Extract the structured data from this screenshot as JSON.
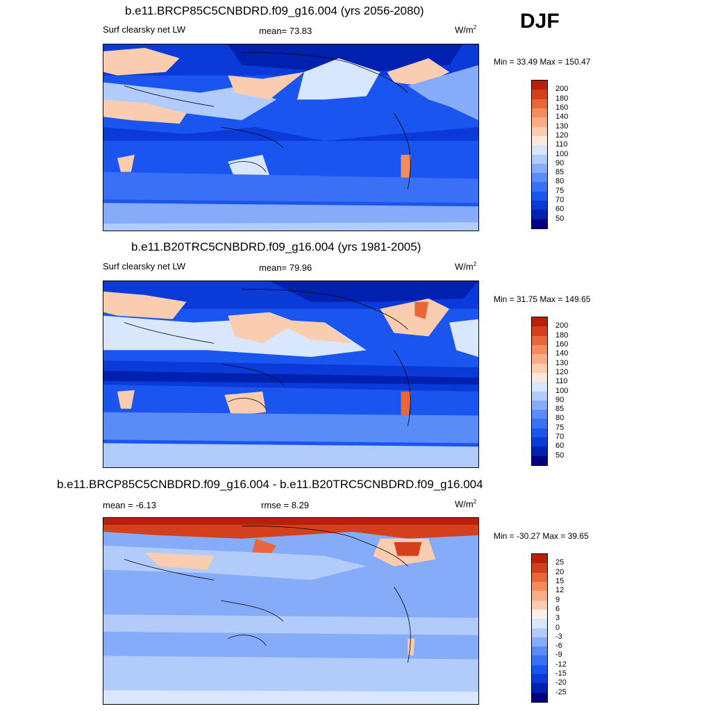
{
  "season": "DJF",
  "colors": {
    "abs_scale": [
      "#000080",
      "#0020b0",
      "#0a3ad8",
      "#1a55f0",
      "#3a70f5",
      "#5a8cf8",
      "#86abf9",
      "#b1ccfb",
      "#d8e7fd",
      "#fbe8d8",
      "#fbcdb0",
      "#f8ad87",
      "#f28b5d",
      "#e8663a",
      "#d5401c",
      "#b8200c",
      "#850000"
    ],
    "diff_scale": [
      "#000080",
      "#0020b0",
      "#0a3ad8",
      "#1a55f0",
      "#3a70f5",
      "#5a8cf8",
      "#86abf9",
      "#b1ccfb",
      "#d8e7fd",
      "#fbf0e4",
      "#fbcdb0",
      "#f8ad87",
      "#f28b5d",
      "#e8663a",
      "#d5401c",
      "#b8200c",
      "#850000"
    ]
  },
  "panels": [
    {
      "title": "b.e11.BRCP85C5CNBDRD.f09_g16.004 (yrs 2056-2080)",
      "left_label": "Surf clearsky net LW",
      "center_label": "mean=  73.83",
      "units": "W/m",
      "units_sup": "2",
      "minmax": "Min =  33.49 Max = 150.47",
      "levels": [
        "200",
        "180",
        "160",
        "140",
        "130",
        "120",
        "110",
        "100",
        "90",
        "85",
        "80",
        "75",
        "70",
        "60",
        "50"
      ]
    },
    {
      "title": "b.e11.B20TRC5CNBDRD.f09_g16.004 (yrs 1981-2005)",
      "left_label": "Surf clearsky net LW",
      "center_label": "mean=  79.96",
      "units": "W/m",
      "units_sup": "2",
      "minmax": "Min =  31.75 Max = 149.65",
      "levels": [
        "200",
        "180",
        "160",
        "140",
        "130",
        "120",
        "110",
        "100",
        "90",
        "85",
        "80",
        "75",
        "70",
        "60",
        "50"
      ]
    },
    {
      "title": "b.e11.BRCP85C5CNBDRD.f09_g16.004 - b.e11.B20TRC5CNBDRD.f09_g16.004",
      "left_label": "mean =  -6.13",
      "center_label": "rmse =    8.29",
      "units": "W/m",
      "units_sup": "2",
      "minmax": "Min = -30.27 Max =  39.65",
      "levels": [
        "25",
        "20",
        "15",
        "12",
        "9",
        "6",
        "3",
        "0",
        "-3",
        "-6",
        "-9",
        "-12",
        "-15",
        "-20",
        "-25"
      ]
    }
  ]
}
